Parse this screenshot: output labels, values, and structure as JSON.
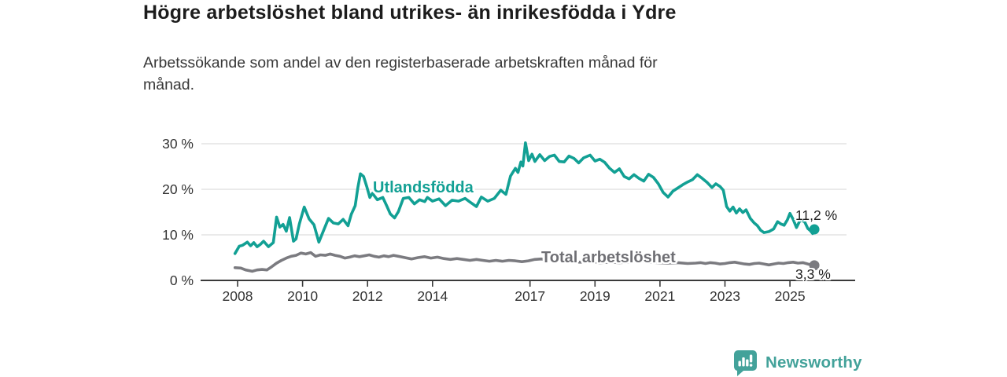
{
  "header": {
    "title": "Högre arbetslöshet bland utrikes- än inrikesfödda i Ydre",
    "subtitle_lines": [
      "Arbetssökande som andel av den registerbaserade arbetskraften månad för",
      "månad."
    ]
  },
  "chart_data": {
    "type": "line",
    "title": "Högre arbetslöshet bland utrikes- än inrikesfödda i Ydre",
    "subtitle": "Arbetssökande som andel av den registerbaserade arbetskraften månad för månad.",
    "grid": true,
    "legend_position": "inline-labels-on-lines",
    "y_axis": {
      "unit": "%",
      "range": [
        0,
        30
      ],
      "ticks": [
        {
          "value": 0,
          "label": "0 %"
        },
        {
          "value": 10,
          "label": "10 %"
        },
        {
          "value": 20,
          "label": "20 %"
        },
        {
          "value": 30,
          "label": "30 %"
        }
      ]
    },
    "x_axis": {
      "range_years": [
        2007.9,
        2025.75
      ],
      "ticks": [
        {
          "year": 2008,
          "label": "2008"
        },
        {
          "year": 2010,
          "label": "2010"
        },
        {
          "year": 2012,
          "label": "2012"
        },
        {
          "year": 2014,
          "label": "2014"
        },
        {
          "year": 2017,
          "label": "2017"
        },
        {
          "year": 2019,
          "label": "2019"
        },
        {
          "year": 2021,
          "label": "2021"
        },
        {
          "year": 2023,
          "label": "2023"
        },
        {
          "year": 2025,
          "label": "2025"
        }
      ]
    },
    "series": [
      {
        "name": "Utlandsfödda",
        "color": "#12a094",
        "end_label": "11,2 %",
        "end_value": 11.2,
        "points": [
          [
            2007.92,
            5.9
          ],
          [
            2008.05,
            7.5
          ],
          [
            2008.15,
            7.7
          ],
          [
            2008.3,
            8.4
          ],
          [
            2008.4,
            7.6
          ],
          [
            2008.5,
            8.3
          ],
          [
            2008.6,
            7.4
          ],
          [
            2008.7,
            7.9
          ],
          [
            2008.8,
            8.6
          ],
          [
            2008.95,
            7.4
          ],
          [
            2009.1,
            8.3
          ],
          [
            2009.2,
            13.9
          ],
          [
            2009.3,
            11.7
          ],
          [
            2009.4,
            12.3
          ],
          [
            2009.5,
            10.8
          ],
          [
            2009.6,
            13.8
          ],
          [
            2009.72,
            8.6
          ],
          [
            2009.8,
            9.1
          ],
          [
            2009.9,
            12.4
          ],
          [
            2010.05,
            16.1
          ],
          [
            2010.2,
            13.5
          ],
          [
            2010.35,
            12.2
          ],
          [
            2010.5,
            8.4
          ],
          [
            2010.65,
            11.0
          ],
          [
            2010.8,
            13.6
          ],
          [
            2010.95,
            12.6
          ],
          [
            2011.1,
            12.4
          ],
          [
            2011.25,
            13.4
          ],
          [
            2011.4,
            12.0
          ],
          [
            2011.5,
            14.5
          ],
          [
            2011.62,
            16.4
          ],
          [
            2011.7,
            20.3
          ],
          [
            2011.78,
            23.4
          ],
          [
            2011.88,
            22.8
          ],
          [
            2011.97,
            20.7
          ],
          [
            2012.07,
            18.2
          ],
          [
            2012.15,
            19.1
          ],
          [
            2012.3,
            17.7
          ],
          [
            2012.47,
            18.2
          ],
          [
            2012.6,
            16.2
          ],
          [
            2012.7,
            14.6
          ],
          [
            2012.83,
            13.7
          ],
          [
            2012.95,
            15.1
          ],
          [
            2013.1,
            18.0
          ],
          [
            2013.27,
            18.2
          ],
          [
            2013.44,
            16.8
          ],
          [
            2013.6,
            17.7
          ],
          [
            2013.76,
            17.3
          ],
          [
            2013.84,
            18.2
          ],
          [
            2014.0,
            17.4
          ],
          [
            2014.2,
            17.9
          ],
          [
            2014.4,
            16.4
          ],
          [
            2014.6,
            17.6
          ],
          [
            2014.8,
            17.4
          ],
          [
            2015.0,
            18.0
          ],
          [
            2015.15,
            17.2
          ],
          [
            2015.35,
            16.2
          ],
          [
            2015.5,
            18.3
          ],
          [
            2015.7,
            17.4
          ],
          [
            2015.9,
            18.0
          ],
          [
            2016.1,
            19.8
          ],
          [
            2016.26,
            18.9
          ],
          [
            2016.4,
            22.9
          ],
          [
            2016.55,
            24.6
          ],
          [
            2016.63,
            23.7
          ],
          [
            2016.72,
            26.0
          ],
          [
            2016.78,
            25.1
          ],
          [
            2016.86,
            30.2
          ],
          [
            2016.96,
            26.3
          ],
          [
            2017.06,
            27.7
          ],
          [
            2017.15,
            26.1
          ],
          [
            2017.3,
            27.6
          ],
          [
            2017.45,
            26.3
          ],
          [
            2017.6,
            27.2
          ],
          [
            2017.75,
            27.5
          ],
          [
            2017.9,
            26.1
          ],
          [
            2018.05,
            26.0
          ],
          [
            2018.2,
            27.3
          ],
          [
            2018.35,
            26.8
          ],
          [
            2018.5,
            25.8
          ],
          [
            2018.65,
            26.9
          ],
          [
            2018.85,
            27.5
          ],
          [
            2019.0,
            26.2
          ],
          [
            2019.15,
            26.6
          ],
          [
            2019.3,
            25.9
          ],
          [
            2019.45,
            24.6
          ],
          [
            2019.6,
            23.7
          ],
          [
            2019.75,
            24.5
          ],
          [
            2019.9,
            22.8
          ],
          [
            2020.05,
            22.3
          ],
          [
            2020.2,
            23.2
          ],
          [
            2020.35,
            22.4
          ],
          [
            2020.5,
            21.8
          ],
          [
            2020.65,
            23.3
          ],
          [
            2020.8,
            22.6
          ],
          [
            2020.95,
            21.2
          ],
          [
            2021.1,
            19.3
          ],
          [
            2021.25,
            18.3
          ],
          [
            2021.4,
            19.6
          ],
          [
            2021.55,
            20.3
          ],
          [
            2021.7,
            21.0
          ],
          [
            2021.85,
            21.6
          ],
          [
            2022.0,
            22.1
          ],
          [
            2022.15,
            23.2
          ],
          [
            2022.3,
            22.4
          ],
          [
            2022.45,
            21.5
          ],
          [
            2022.6,
            20.4
          ],
          [
            2022.72,
            21.2
          ],
          [
            2022.85,
            20.6
          ],
          [
            2022.95,
            19.8
          ],
          [
            2023.05,
            16.2
          ],
          [
            2023.15,
            15.2
          ],
          [
            2023.25,
            16.1
          ],
          [
            2023.35,
            14.8
          ],
          [
            2023.45,
            15.7
          ],
          [
            2023.55,
            14.9
          ],
          [
            2023.65,
            15.5
          ],
          [
            2023.78,
            13.6
          ],
          [
            2023.9,
            12.6
          ],
          [
            2024.0,
            12.0
          ],
          [
            2024.1,
            11.0
          ],
          [
            2024.2,
            10.5
          ],
          [
            2024.35,
            10.7
          ],
          [
            2024.5,
            11.3
          ],
          [
            2024.62,
            12.9
          ],
          [
            2024.72,
            12.4
          ],
          [
            2024.82,
            12.1
          ],
          [
            2024.92,
            13.3
          ],
          [
            2025.0,
            14.7
          ],
          [
            2025.1,
            13.4
          ],
          [
            2025.2,
            11.6
          ],
          [
            2025.32,
            13.3
          ],
          [
            2025.45,
            12.9
          ],
          [
            2025.55,
            11.4
          ],
          [
            2025.63,
            10.9
          ],
          [
            2025.7,
            10.3
          ],
          [
            2025.75,
            11.2
          ]
        ]
      },
      {
        "name": "Total arbetslöshet",
        "color": "#7b7b80",
        "end_label": "3,3 %",
        "end_value": 3.3,
        "points": [
          [
            2007.92,
            2.8
          ],
          [
            2008.1,
            2.7
          ],
          [
            2008.25,
            2.3
          ],
          [
            2008.45,
            2.0
          ],
          [
            2008.6,
            2.3
          ],
          [
            2008.75,
            2.4
          ],
          [
            2008.9,
            2.3
          ],
          [
            2009.05,
            3.0
          ],
          [
            2009.2,
            3.8
          ],
          [
            2009.35,
            4.4
          ],
          [
            2009.5,
            4.9
          ],
          [
            2009.65,
            5.3
          ],
          [
            2009.8,
            5.5
          ],
          [
            2009.95,
            6.0
          ],
          [
            2010.1,
            5.8
          ],
          [
            2010.25,
            6.1
          ],
          [
            2010.4,
            5.3
          ],
          [
            2010.55,
            5.6
          ],
          [
            2010.7,
            5.5
          ],
          [
            2010.85,
            5.8
          ],
          [
            2011.0,
            5.5
          ],
          [
            2011.15,
            5.3
          ],
          [
            2011.3,
            4.9
          ],
          [
            2011.45,
            5.1
          ],
          [
            2011.6,
            5.4
          ],
          [
            2011.75,
            5.2
          ],
          [
            2011.9,
            5.4
          ],
          [
            2012.05,
            5.6
          ],
          [
            2012.2,
            5.3
          ],
          [
            2012.35,
            5.1
          ],
          [
            2012.5,
            5.4
          ],
          [
            2012.65,
            5.2
          ],
          [
            2012.8,
            5.5
          ],
          [
            2012.95,
            5.3
          ],
          [
            2013.15,
            5.0
          ],
          [
            2013.35,
            4.7
          ],
          [
            2013.55,
            5.0
          ],
          [
            2013.75,
            5.2
          ],
          [
            2013.95,
            4.9
          ],
          [
            2014.15,
            5.1
          ],
          [
            2014.35,
            4.8
          ],
          [
            2014.55,
            4.6
          ],
          [
            2014.75,
            4.8
          ],
          [
            2014.95,
            4.6
          ],
          [
            2015.15,
            4.4
          ],
          [
            2015.35,
            4.6
          ],
          [
            2015.55,
            4.4
          ],
          [
            2015.75,
            4.2
          ],
          [
            2015.95,
            4.4
          ],
          [
            2016.15,
            4.2
          ],
          [
            2016.35,
            4.4
          ],
          [
            2016.55,
            4.3
          ],
          [
            2016.75,
            4.1
          ],
          [
            2016.95,
            4.3
          ],
          [
            2017.15,
            4.6
          ],
          [
            2017.35,
            4.7
          ],
          [
            2017.55,
            4.4
          ],
          [
            2017.75,
            4.5
          ],
          [
            2017.95,
            4.3
          ],
          [
            2018.25,
            4.1
          ],
          [
            2018.55,
            4.0
          ],
          [
            2018.85,
            4.1
          ],
          [
            2019.15,
            3.9
          ],
          [
            2019.45,
            4.0
          ],
          [
            2019.75,
            3.9
          ],
          [
            2020.05,
            4.0
          ],
          [
            2020.35,
            4.2
          ],
          [
            2020.65,
            4.0
          ],
          [
            2020.95,
            3.9
          ],
          [
            2021.25,
            3.8
          ],
          [
            2021.55,
            3.9
          ],
          [
            2021.85,
            3.7
          ],
          [
            2022.1,
            3.8
          ],
          [
            2022.25,
            3.9
          ],
          [
            2022.4,
            3.7
          ],
          [
            2022.55,
            3.9
          ],
          [
            2022.7,
            3.8
          ],
          [
            2022.85,
            3.6
          ],
          [
            2023.0,
            3.7
          ],
          [
            2023.15,
            3.9
          ],
          [
            2023.3,
            4.0
          ],
          [
            2023.45,
            3.8
          ],
          [
            2023.6,
            3.6
          ],
          [
            2023.75,
            3.5
          ],
          [
            2023.9,
            3.7
          ],
          [
            2024.05,
            3.8
          ],
          [
            2024.2,
            3.6
          ],
          [
            2024.35,
            3.4
          ],
          [
            2024.5,
            3.6
          ],
          [
            2024.65,
            3.8
          ],
          [
            2024.8,
            3.7
          ],
          [
            2024.95,
            3.9
          ],
          [
            2025.1,
            4.0
          ],
          [
            2025.25,
            3.8
          ],
          [
            2025.4,
            3.9
          ],
          [
            2025.55,
            3.6
          ],
          [
            2025.65,
            3.4
          ],
          [
            2025.75,
            3.3
          ]
        ]
      }
    ]
  },
  "colors": {
    "teal": "#12a094",
    "gray_line": "#7b7b80",
    "grid": "#e4e4e4",
    "axis": "#3a3a3a",
    "tick_text": "#333333",
    "value_label_text": "#222222",
    "brand": "#43a29a"
  },
  "footer": {
    "brand": "Newsworthy"
  }
}
